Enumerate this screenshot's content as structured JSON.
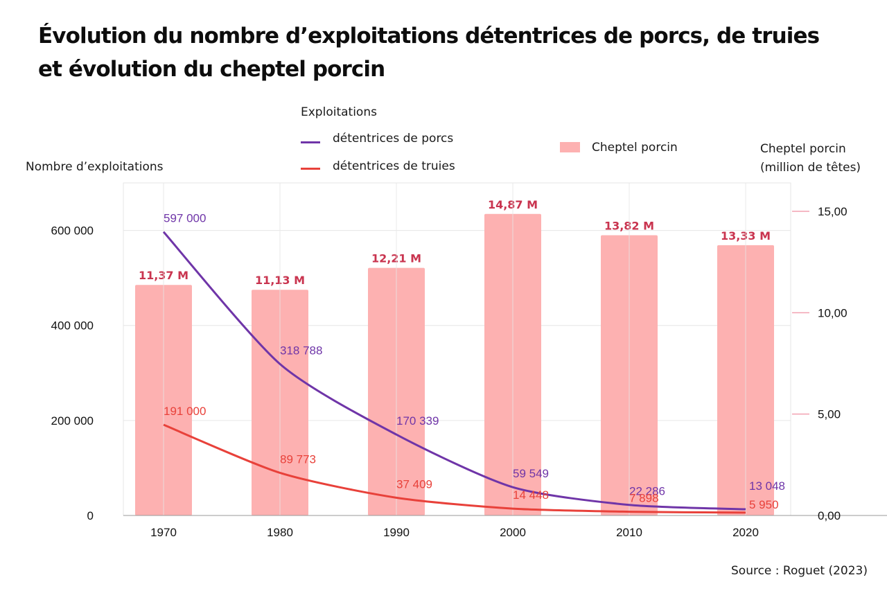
{
  "title_line1": "Évolution du nombre d’exploitations détentrices de porcs, de truies",
  "title_line2": "et évolution du cheptel porcin",
  "source": "Source : Roguet (2023)",
  "colors": {
    "porcs": "#6f35a8",
    "truies": "#e8413a",
    "bars": "#fdb1b1",
    "bar_labels": "#c9344f",
    "grid": "#e6e6e6",
    "right_tick": "#f2a0b0"
  },
  "legend": {
    "group_title": "Exploitations",
    "porcs_label": "détentrices de porcs",
    "truies_label": "détentrices de truies",
    "bars_label": "Cheptel porcin"
  },
  "chart_data": {
    "type": "bar+line",
    "title": "Évolution du nombre d’exploitations détentrices de porcs, de truies et évolution du cheptel porcin",
    "categories": [
      "1970",
      "1980",
      "1990",
      "2000",
      "2010",
      "2020"
    ],
    "left_axis": {
      "label": "Nombre d’exploitations",
      "range": [
        0,
        700000
      ],
      "ticks": [
        0,
        200000,
        400000,
        600000
      ],
      "tick_labels": [
        "0",
        "200 000",
        "400 000",
        "600 000"
      ]
    },
    "right_axis": {
      "label_line1": "Cheptel porcin",
      "label_line2": "(million de têtes)",
      "range": [
        0,
        16.4
      ],
      "ticks": [
        0,
        5,
        10,
        15
      ],
      "tick_labels": [
        "0,00",
        "5,00",
        "10,00",
        "15,00"
      ]
    },
    "bars": {
      "name": "Cheptel porcin",
      "axis": "right",
      "values": [
        11.37,
        11.13,
        12.21,
        14.87,
        13.82,
        13.33
      ],
      "labels": [
        "11,37 M",
        "11,13 M",
        "12,21 M",
        "14,87 M",
        "13,82 M",
        "13,33 M"
      ]
    },
    "series": [
      {
        "name": "détentrices de porcs",
        "axis": "left",
        "values": [
          597000,
          318788,
          170339,
          59549,
          22286,
          13048
        ],
        "labels": [
          "597 000",
          "318 788",
          "170 339",
          "59 549",
          "22 286",
          "13 048"
        ]
      },
      {
        "name": "détentrices de truies",
        "axis": "left",
        "values": [
          191000,
          89773,
          37409,
          14448,
          7898,
          5950
        ],
        "labels": [
          "191 000",
          "89 773",
          "37 409",
          "14 448",
          "7 898",
          "5 950"
        ]
      }
    ],
    "grid": true,
    "legend_position": "top"
  }
}
